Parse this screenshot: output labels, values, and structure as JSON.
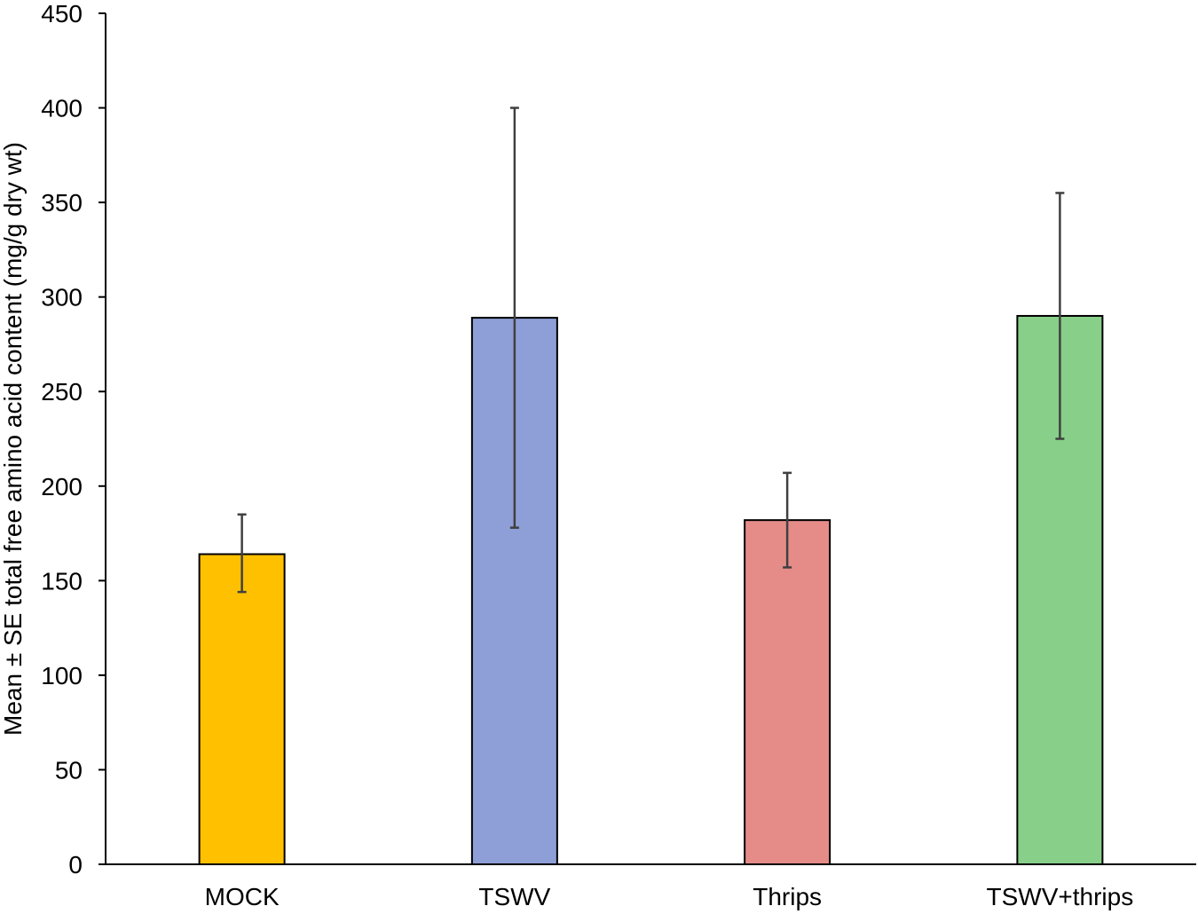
{
  "chart_data": {
    "type": "bar",
    "title": "",
    "xlabel": "",
    "ylabel": "Mean ± SE total free amino acid content (mg/g dry wt)",
    "ylim": [
      0,
      450
    ],
    "yticks": [
      0,
      50,
      100,
      150,
      200,
      250,
      300,
      350,
      400,
      450
    ],
    "categories": [
      "MOCK",
      "TSWV",
      "Thrips",
      "TSWV+thrips"
    ],
    "values": [
      164,
      289,
      182,
      290
    ],
    "error_low": [
      144,
      178,
      157,
      225
    ],
    "error_high": [
      185,
      400,
      207,
      355
    ],
    "colors": [
      "#FFC000",
      "#8E9ED6",
      "#E58C89",
      "#88CF8A"
    ],
    "grid": false,
    "legend": "none"
  }
}
